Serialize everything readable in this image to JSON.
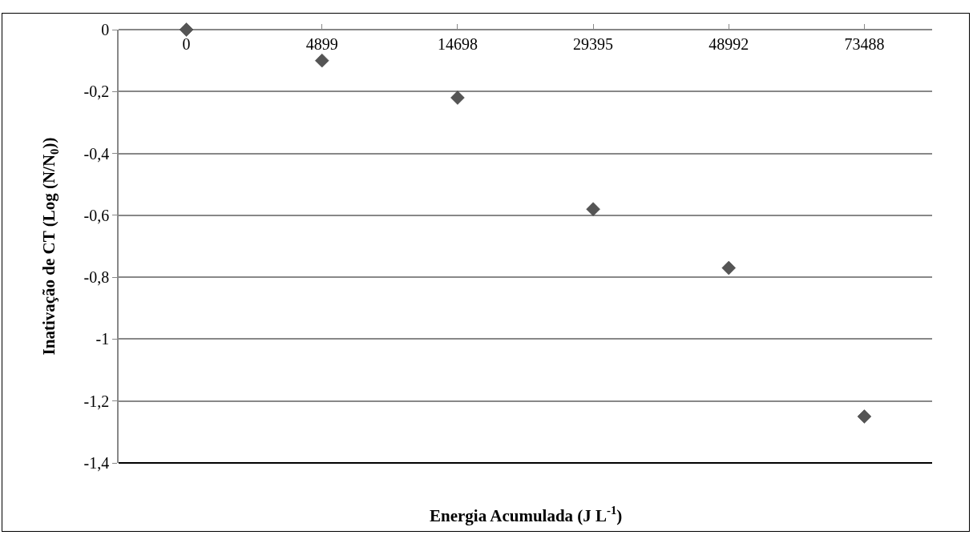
{
  "chart_data": {
    "type": "scatter",
    "xlabel": "Energia Acumulada (J L$^{-1}$)",
    "ylabel": "Inativação de CT (Log (N/N$_{0}$))",
    "categories": [
      "0",
      "4899",
      "14698",
      "29395",
      "48992",
      "73488"
    ],
    "series": [
      {
        "color": "#555555",
        "values": [
          0,
          -0.1,
          -0.22,
          -0.58,
          -0.77,
          -1.25
        ]
      }
    ],
    "ylim": [
      -1.4,
      0
    ],
    "yticks": [
      0,
      {
        "value": -0.2,
        "label": "-0,2"
      },
      {
        "value": -0.4,
        "label": "-0,4"
      },
      {
        "value": -0.6,
        "label": "-0,6"
      },
      {
        "value": -0.8,
        "label": "-0,8"
      },
      -1,
      {
        "value": -1.2,
        "label": "-1,2"
      },
      {
        "value": -1.4,
        "label": "-1,4"
      }
    ],
    "grid": "y",
    "marker": "diamond"
  }
}
